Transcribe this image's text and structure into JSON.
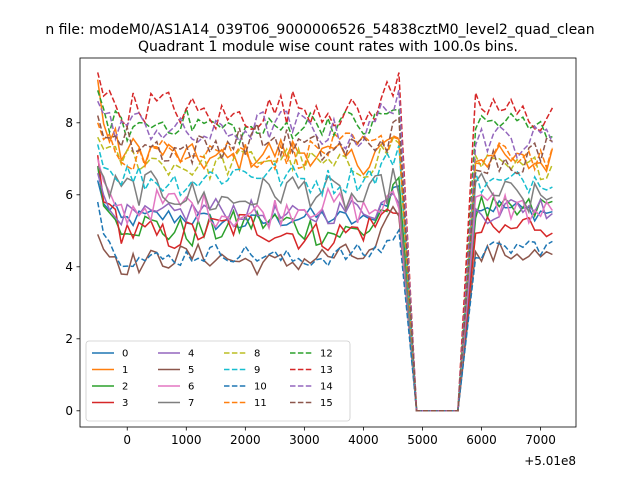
{
  "chart_data": {
    "type": "line",
    "suptitle": "n file: modeM0/AS1A14_039T06_9000006526_54838cztM0_level2_quad_clean",
    "title": "Quadrant 1 module wise count rates with 100.0s bins.",
    "xlabel": "",
    "ylabel": "",
    "offset_label": "+5.01e8",
    "xlim": [
      -800,
      7600
    ],
    "ylim": [
      -0.45,
      9.8
    ],
    "xticks": [
      0,
      1000,
      2000,
      3000,
      4000,
      5000,
      6000,
      7000
    ],
    "yticks": [
      0,
      2,
      4,
      6,
      8
    ],
    "legend_position": "lower-left",
    "legend_columns": 4,
    "time_bins": {
      "start": -500,
      "step": 100,
      "count": 78
    },
    "gap": {
      "low_value": 0,
      "drop_end_index": 14,
      "rise_start_index": 53
    },
    "series": [
      {
        "name": "0",
        "color": "#1f77b4",
        "dash": "solid",
        "start": 6.4,
        "base": 5.3,
        "pre_peak": 6.4,
        "post": 5.6,
        "noise": 0.12
      },
      {
        "name": "1",
        "color": "#ff7f0e",
        "dash": "solid",
        "start": 9.2,
        "base": 7.1,
        "pre_peak": 7.6,
        "post": 7.0,
        "noise": 0.18
      },
      {
        "name": "2",
        "color": "#2ca02c",
        "dash": "solid",
        "start": 6.8,
        "base": 5.1,
        "pre_peak": 6.2,
        "post": 5.6,
        "noise": 0.2
      },
      {
        "name": "3",
        "color": "#d62728",
        "dash": "solid",
        "start": 7.1,
        "base": 5.0,
        "pre_peak": 5.9,
        "post": 5.1,
        "noise": 0.2
      },
      {
        "name": "4",
        "color": "#9467bd",
        "dash": "solid",
        "start": 6.6,
        "base": 5.5,
        "pre_peak": 6.1,
        "post": 5.6,
        "noise": 0.15
      },
      {
        "name": "5",
        "color": "#8c564b",
        "dash": "solid",
        "start": 4.9,
        "base": 4.2,
        "pre_peak": 5.8,
        "post": 4.3,
        "noise": 0.15
      },
      {
        "name": "6",
        "color": "#e377c2",
        "dash": "solid",
        "start": 7.0,
        "base": 5.6,
        "pre_peak": 5.8,
        "post": 5.6,
        "noise": 0.2
      },
      {
        "name": "7",
        "color": "#7f7f7f",
        "dash": "solid",
        "start": 6.8,
        "base": 6.0,
        "pre_peak": 6.4,
        "post": 6.0,
        "noise": 0.22
      },
      {
        "name": "8",
        "color": "#bcbd22",
        "dash": "dashed",
        "start": 7.6,
        "base": 6.9,
        "pre_peak": 7.6,
        "post": 6.8,
        "noise": 0.17
      },
      {
        "name": "9",
        "color": "#17becf",
        "dash": "dashed",
        "start": 7.4,
        "base": 6.5,
        "pre_peak": 7.3,
        "post": 6.4,
        "noise": 0.18
      },
      {
        "name": "10",
        "color": "#1f77b4",
        "dash": "dashed",
        "start": 5.8,
        "base": 4.3,
        "pre_peak": 5.0,
        "post": 4.5,
        "noise": 0.12
      },
      {
        "name": "11",
        "color": "#ff7f0e",
        "dash": "dashed",
        "start": 8.0,
        "base": 7.2,
        "pre_peak": 7.8,
        "post": 7.0,
        "noise": 0.18
      },
      {
        "name": "12",
        "color": "#2ca02c",
        "dash": "dashed",
        "start": 8.9,
        "base": 7.9,
        "pre_peak": 8.5,
        "post": 7.9,
        "noise": 0.18
      },
      {
        "name": "13",
        "color": "#d62728",
        "dash": "dashed",
        "start": 9.4,
        "base": 8.3,
        "pre_peak": 9.2,
        "post": 8.3,
        "noise": 0.22
      },
      {
        "name": "14",
        "color": "#9467bd",
        "dash": "dashed",
        "start": 8.6,
        "base": 7.8,
        "pre_peak": 9.0,
        "post": 7.6,
        "noise": 0.2
      },
      {
        "name": "15",
        "color": "#8c564b",
        "dash": "dashed",
        "start": 8.2,
        "base": 7.4,
        "pre_peak": 7.8,
        "post": 7.1,
        "noise": 0.2
      }
    ]
  }
}
